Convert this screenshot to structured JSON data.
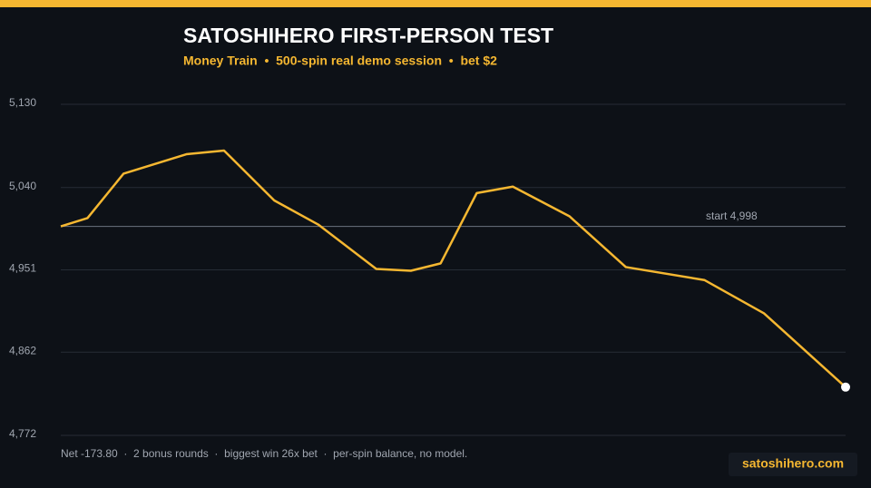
{
  "chart_data": {
    "type": "line",
    "title": "SATOSHIHERO FIRST-PERSON TEST",
    "subtitle": "Money Train  •  500-spin real demo session  •  bet $2",
    "x": [
      0,
      17,
      40,
      80,
      104,
      136,
      164,
      201,
      223,
      242,
      265,
      288,
      324,
      360,
      410,
      448,
      500
    ],
    "xlim": [
      0,
      500
    ],
    "series": [
      {
        "name": "balance",
        "color": "#f5b731",
        "values": [
          4998,
          5007,
          5055,
          5076,
          5080,
          5026,
          5000,
          4952,
          4950,
          4958,
          5034,
          5041,
          5009,
          4954,
          4940,
          4904,
          4824.2
        ]
      }
    ],
    "ylim": [
      4772,
      5130
    ],
    "yticks": [
      {
        "value": 4772,
        "label": "4,772"
      },
      {
        "value": 4862,
        "label": "4,862"
      },
      {
        "value": 4951,
        "label": "4,951"
      },
      {
        "value": 5040,
        "label": "5,040"
      },
      {
        "value": 5130,
        "label": "5,130"
      }
    ],
    "grid": true,
    "reference_line": {
      "value": 4998,
      "label": "start 4,998"
    },
    "footnote": "Net -173.80  ·  2 bonus rounds  ·  biggest win 26x bet  ·  per-spin balance, no model.",
    "brand": "satoshihero.com"
  }
}
